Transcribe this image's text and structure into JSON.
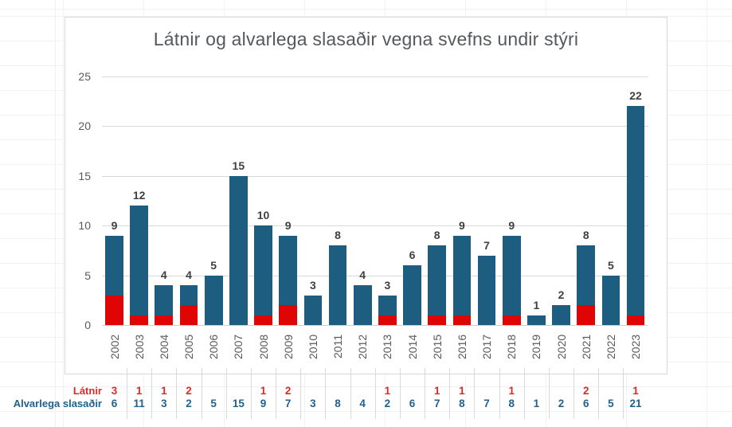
{
  "chart_data": {
    "type": "bar",
    "stacked": true,
    "title": "Látnir og alvarlega slasaðir vegna svefns undir stýri",
    "categories": [
      2002,
      2003,
      2004,
      2005,
      2006,
      2007,
      2008,
      2009,
      2010,
      2011,
      2012,
      2013,
      2014,
      2015,
      2016,
      2017,
      2018,
      2019,
      2020,
      2021,
      2022,
      2023
    ],
    "series": [
      {
        "name": "Látnir",
        "bar_color": "#e00505",
        "text_color": "#dc2a2a",
        "values": [
          3,
          1,
          1,
          2,
          null,
          null,
          1,
          2,
          null,
          null,
          null,
          1,
          null,
          1,
          1,
          null,
          1,
          null,
          null,
          2,
          null,
          1
        ]
      },
      {
        "name": "Alvarlega slasaðir",
        "bar_color": "#1d5e80",
        "text_color": "#1f618f",
        "values": [
          6,
          11,
          3,
          2,
          5,
          15,
          9,
          7,
          3,
          8,
          4,
          2,
          6,
          7,
          8,
          7,
          8,
          1,
          2,
          6,
          5,
          21
        ]
      }
    ],
    "totals": [
      9,
      12,
      4,
      4,
      5,
      15,
      10,
      9,
      3,
      8,
      4,
      3,
      6,
      8,
      9,
      7,
      9,
      1,
      2,
      8,
      5,
      22
    ],
    "y_ticks": [
      0,
      5,
      10,
      15,
      20,
      25
    ],
    "ylim": [
      0,
      25
    ],
    "grid": true,
    "legend": "none",
    "data_table_shown": true,
    "xlabel": "",
    "ylabel": ""
  }
}
